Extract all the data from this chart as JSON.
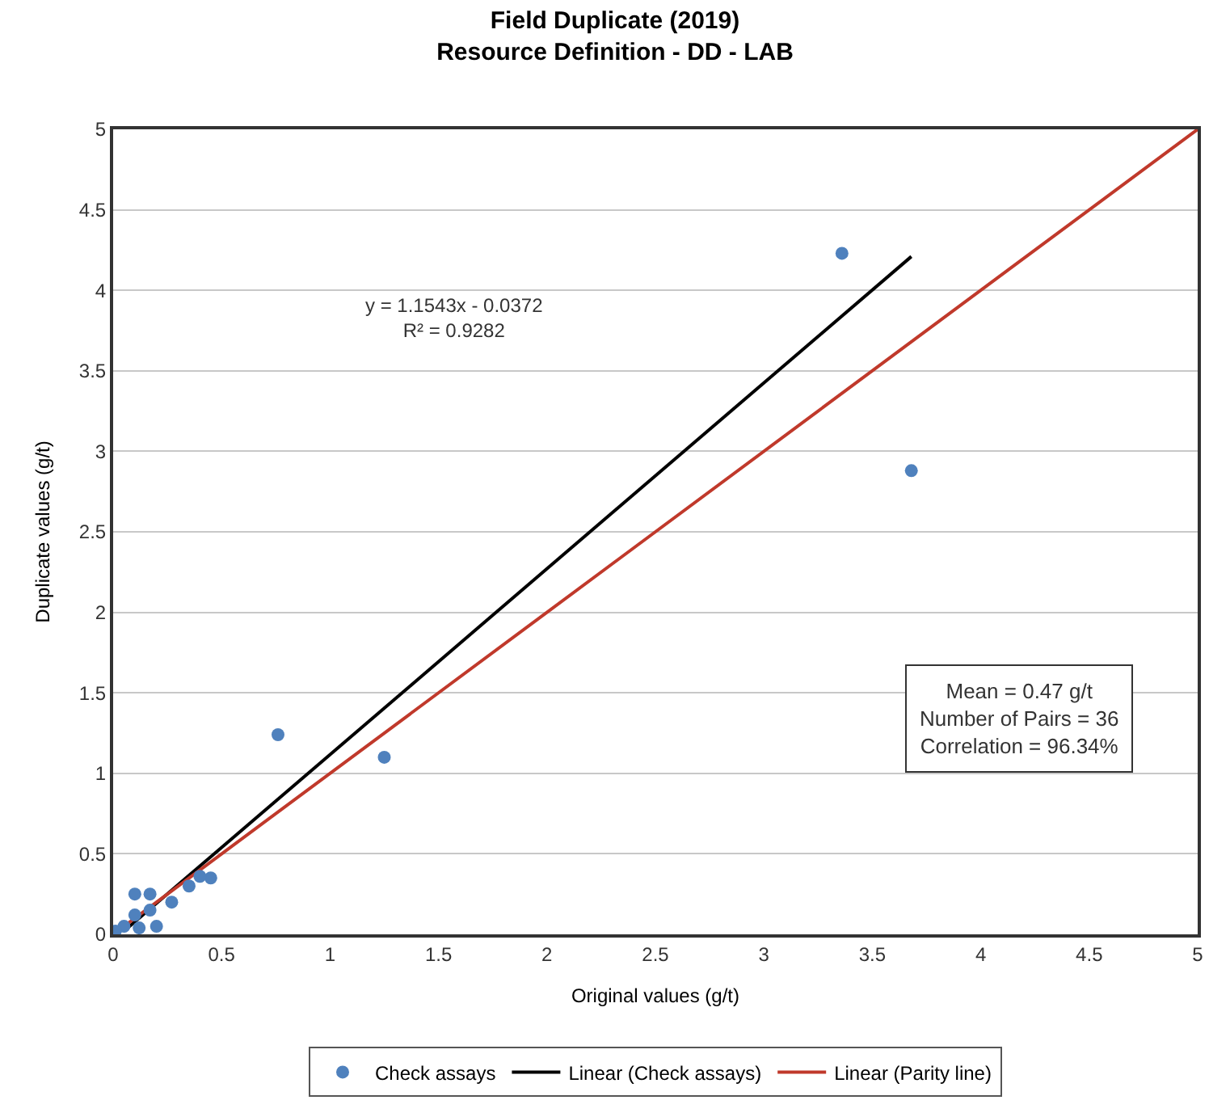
{
  "chart_data": {
    "type": "scatter",
    "title": "Field Duplicate (2019)",
    "subtitle": "Resource Definition - DD - LAB",
    "xlabel": "Original values (g/t)",
    "ylabel": "Duplicate values (g/t)",
    "xlim": [
      0,
      5
    ],
    "xticks": [
      0,
      0.5,
      1,
      1.5,
      2,
      2.5,
      3,
      3.5,
      4,
      4.5,
      5
    ],
    "ylim": [
      0,
      5
    ],
    "yticks": [
      0,
      0.5,
      1,
      1.5,
      2,
      2.5,
      3,
      3.5,
      4,
      4.5,
      5
    ],
    "grid": "y",
    "legend": "bottom",
    "annotations": [
      "y = 1.1543x - 0.0372\nR² = 0.9282",
      "Mean = 0.47 g/t\nNumber of Pairs = 36\nCorrelation = 96.34%"
    ],
    "series": [
      {
        "name": "Check assays",
        "marker": "circle",
        "color": "#4f81bd",
        "x": [
          3.36,
          3.68,
          0.76,
          1.25,
          0.45,
          0.4,
          0.35,
          0.27,
          0.17,
          0.1,
          0.2,
          0.17,
          0.1,
          0.05,
          0.01,
          0.12
        ],
        "values": [
          4.23,
          2.88,
          1.24,
          1.1,
          0.35,
          0.36,
          0.3,
          0.2,
          0.25,
          0.25,
          0.05,
          0.15,
          0.12,
          0.05,
          0.02,
          0.04
        ]
      },
      {
        "name": "Linear (Check assays)",
        "type": "line",
        "color": "#000000",
        "x": [
          0.05,
          3.68
        ],
        "values": [
          0.02,
          4.21
        ]
      },
      {
        "name": "Linear (Parity line)",
        "type": "line",
        "color": "#c0392b",
        "x": [
          0,
          5
        ],
        "values": [
          0,
          5
        ]
      }
    ]
  }
}
